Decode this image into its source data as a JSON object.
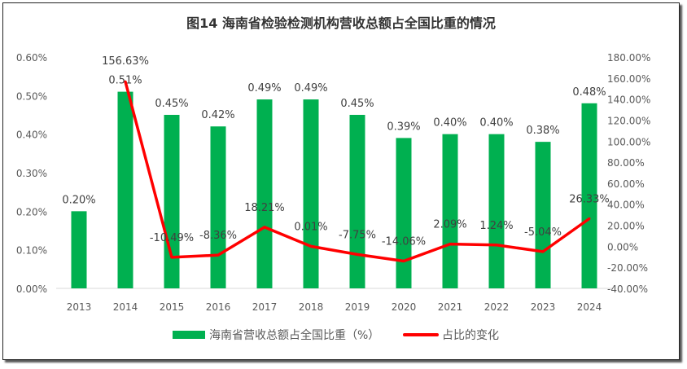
{
  "chart_data": {
    "type": "bar+line",
    "title": "图14 海南省检验检测机构营收总额占全国比重的情况",
    "categories": [
      "2013",
      "2014",
      "2015",
      "2016",
      "2017",
      "2018",
      "2019",
      "2020",
      "2021",
      "2022",
      "2023",
      "2024"
    ],
    "series": [
      {
        "name": "海南省营收总额占全国比重（%）",
        "type": "bar",
        "axis": "left",
        "color": "#00b050",
        "values": [
          0.2,
          0.51,
          0.45,
          0.42,
          0.49,
          0.49,
          0.45,
          0.39,
          0.4,
          0.4,
          0.38,
          0.48
        ],
        "labels": [
          "0.20%",
          "0.51%",
          "0.45%",
          "0.42%",
          "0.49%",
          "0.49%",
          "0.45%",
          "0.39%",
          "0.40%",
          "0.40%",
          "0.38%",
          "0.48%"
        ]
      },
      {
        "name": "占比的变化",
        "type": "line",
        "axis": "right",
        "color": "#ff0000",
        "values": [
          null,
          156.63,
          -10.49,
          -8.36,
          18.21,
          0.01,
          -7.75,
          -14.06,
          2.09,
          1.24,
          -5.04,
          26.33
        ],
        "labels": [
          "",
          "156.63%",
          "-10.49%",
          "-8.36%",
          "18.21%",
          "0.01%",
          "-7.75%",
          "-14.06%",
          "2.09%",
          "1.24%",
          "-5.04%",
          "26.33%"
        ]
      }
    ],
    "left_axis": {
      "ylim": [
        0,
        0.6
      ],
      "ticks": [
        "0.00%",
        "0.10%",
        "0.20%",
        "0.30%",
        "0.40%",
        "0.50%",
        "0.60%"
      ]
    },
    "right_axis": {
      "ylim": [
        -40,
        180
      ],
      "ticks": [
        "-40.00%",
        "-20.00%",
        "0.00%",
        "20.00%",
        "40.00%",
        "60.00%",
        "80.00%",
        "100.00%",
        "120.00%",
        "140.00%",
        "160.00%",
        "180.00%"
      ]
    },
    "grid": false,
    "legend": "bottom"
  }
}
